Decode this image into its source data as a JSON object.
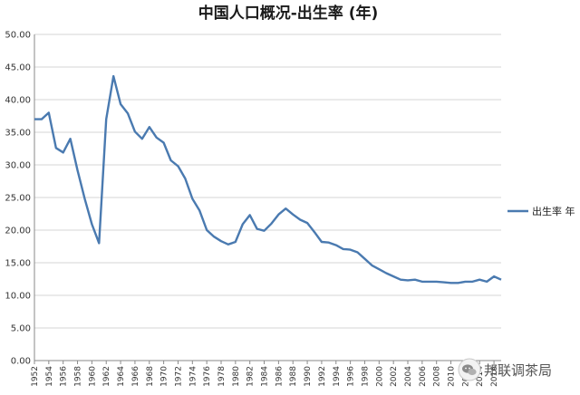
{
  "chart_data": {
    "type": "line",
    "title": "中国人口概况-出生率 (年)",
    "xlabel": "",
    "ylabel": "",
    "ylim": [
      0,
      50
    ],
    "y_ticks": [
      "0.00",
      "5.00",
      "10.00",
      "15.00",
      "20.00",
      "25.00",
      "30.00",
      "35.00",
      "40.00",
      "45.00",
      "50.00"
    ],
    "x_ticks": [
      "1952",
      "1954",
      "1956",
      "1958",
      "1960",
      "1962",
      "1964",
      "1966",
      "1968",
      "1970",
      "1972",
      "1974",
      "1976",
      "1978",
      "1980",
      "1982",
      "1984",
      "1986",
      "1988",
      "1990",
      "1992",
      "1994",
      "1996",
      "1998",
      "2000",
      "2002",
      "2004",
      "2006",
      "2008",
      "2010",
      "2012",
      "2014",
      "2016"
    ],
    "grid": true,
    "legend_position": "right",
    "series": [
      {
        "name": "出生率 年",
        "color": "#4a7ab0",
        "x": [
          1952,
          1953,
          1954,
          1955,
          1956,
          1957,
          1958,
          1959,
          1960,
          1961,
          1962,
          1963,
          1964,
          1965,
          1966,
          1967,
          1968,
          1969,
          1970,
          1971,
          1972,
          1973,
          1974,
          1975,
          1976,
          1977,
          1978,
          1979,
          1980,
          1981,
          1982,
          1983,
          1984,
          1985,
          1986,
          1987,
          1988,
          1989,
          1990,
          1991,
          1992,
          1993,
          1994,
          1995,
          1996,
          1997,
          1998,
          1999,
          2000,
          2001,
          2002,
          2003,
          2004,
          2005,
          2006,
          2007,
          2008,
          2009,
          2010,
          2011,
          2012,
          2013,
          2014,
          2015,
          2016,
          2017
        ],
        "values": [
          37.0,
          37.0,
          38.0,
          32.6,
          31.9,
          34.0,
          29.2,
          24.8,
          20.9,
          18.0,
          37.0,
          43.6,
          39.3,
          37.9,
          35.1,
          34.0,
          35.8,
          34.2,
          33.4,
          30.7,
          29.8,
          27.9,
          24.8,
          23.0,
          20.0,
          19.0,
          18.3,
          17.8,
          18.2,
          20.9,
          22.3,
          20.2,
          19.9,
          21.0,
          22.4,
          23.3,
          22.4,
          21.6,
          21.1,
          19.7,
          18.2,
          18.1,
          17.7,
          17.1,
          17.0,
          16.6,
          15.6,
          14.6,
          14.0,
          13.4,
          12.9,
          12.4,
          12.3,
          12.4,
          12.1,
          12.1,
          12.1,
          12.0,
          11.9,
          11.9,
          12.1,
          12.1,
          12.4,
          12.1,
          12.9,
          12.4
        ]
      }
    ]
  },
  "watermark": {
    "icon": "wechat-icon",
    "text": "邦联调茶局"
  }
}
